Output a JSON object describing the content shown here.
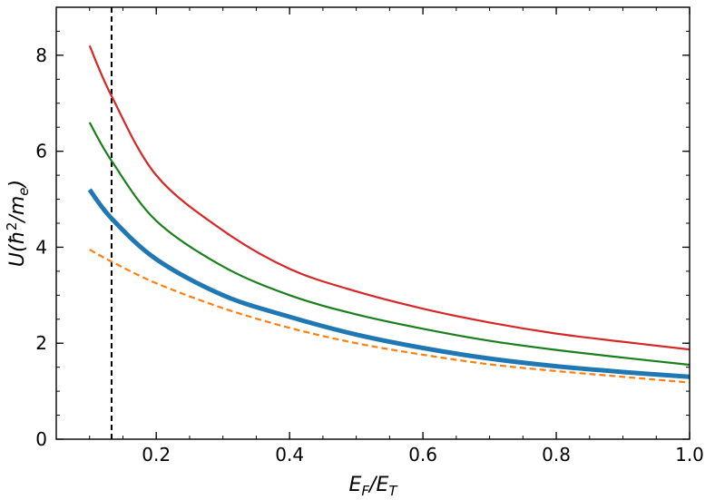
{
  "chart_data": {
    "type": "line",
    "xlabel": "E_F/E_T",
    "ylabel": "U(ħ²/m_e)",
    "xlim": [
      0.05,
      1.0
    ],
    "ylim": [
      0,
      9
    ],
    "x_ticks": [
      0.2,
      0.4,
      0.6,
      0.8,
      1.0
    ],
    "x_tick_labels": [
      "0.2",
      "0.4",
      "0.6",
      "0.8",
      "1.0"
    ],
    "y_ticks": [
      0,
      2,
      4,
      6,
      8
    ],
    "y_tick_labels": [
      "0",
      "2",
      "4",
      "6",
      "8"
    ],
    "vertical_line": {
      "x": 0.133,
      "style": "dashed",
      "color": "#000000"
    },
    "grid": false,
    "series": [
      {
        "color": "#d62728",
        "width": 2.2,
        "dash": "",
        "x": [
          0.1,
          0.133,
          0.2,
          0.3,
          0.4,
          0.5,
          0.6,
          0.7,
          0.8,
          0.9,
          1.0
        ],
        "y": [
          8.2,
          7.15,
          5.5,
          4.35,
          3.55,
          3.08,
          2.72,
          2.43,
          2.2,
          2.03,
          1.87
        ]
      },
      {
        "color": "#1a7f1a",
        "width": 2.2,
        "dash": "",
        "x": [
          0.1,
          0.133,
          0.2,
          0.3,
          0.4,
          0.5,
          0.6,
          0.7,
          0.8,
          0.9,
          1.0
        ],
        "y": [
          6.6,
          5.8,
          4.55,
          3.6,
          3.0,
          2.6,
          2.3,
          2.05,
          1.86,
          1.7,
          1.55
        ]
      },
      {
        "color": "#1f77b4",
        "width": 5,
        "dash": "",
        "x": [
          0.1,
          0.133,
          0.2,
          0.3,
          0.4,
          0.5,
          0.6,
          0.7,
          0.8,
          0.9,
          1.0
        ],
        "y": [
          5.2,
          4.6,
          3.75,
          3.0,
          2.55,
          2.18,
          1.9,
          1.68,
          1.52,
          1.4,
          1.3
        ]
      },
      {
        "color": "#ff7f0e",
        "width": 2.2,
        "dash": "7 4",
        "x": [
          0.1,
          0.133,
          0.2,
          0.3,
          0.4,
          0.5,
          0.6,
          0.7,
          0.8,
          0.9,
          1.0
        ],
        "y": [
          3.95,
          3.7,
          3.25,
          2.73,
          2.32,
          2.0,
          1.76,
          1.56,
          1.42,
          1.3,
          1.18
        ]
      }
    ]
  }
}
